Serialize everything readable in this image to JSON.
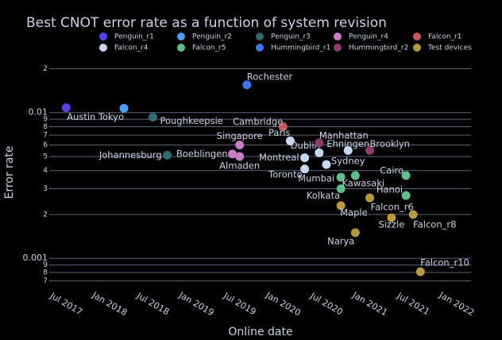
{
  "chart_data": {
    "type": "scatter",
    "title": "Best CNOT error rate as a function of system revision",
    "x_label": "Online date",
    "y_label": "Error rate",
    "log_y": true,
    "grid": true,
    "xlim": [
      "2017-05",
      "2022-03"
    ],
    "xticks": [
      {
        "value": "2017-07",
        "label": "Jul 2017"
      },
      {
        "value": "2018-01",
        "label": "Jan 2018"
      },
      {
        "value": "2018-07",
        "label": "Jul 2018"
      },
      {
        "value": "2019-01",
        "label": "Jan 2019"
      },
      {
        "value": "2019-07",
        "label": "Jul 2019"
      },
      {
        "value": "2020-01",
        "label": "Jan 2020"
      },
      {
        "value": "2020-07",
        "label": "Jul 2020"
      },
      {
        "value": "2021-01",
        "label": "Jan 2021"
      },
      {
        "value": "2021-07",
        "label": "Jul 2021"
      },
      {
        "value": "2022-01",
        "label": "Jan 2022"
      }
    ],
    "ylim": [
      0.00063,
      0.024
    ],
    "yticks": [
      {
        "value": 0.02,
        "label": "2"
      },
      0.01,
      {
        "value": 0.009,
        "label": "9"
      },
      {
        "value": 0.008,
        "label": "8"
      },
      {
        "value": 0.007,
        "label": "7"
      },
      {
        "value": 0.006,
        "label": "6"
      },
      {
        "value": 0.005,
        "label": "5"
      },
      {
        "value": 0.004,
        "label": "4"
      },
      {
        "value": 0.003,
        "label": "3"
      },
      {
        "value": 0.002,
        "label": "2"
      },
      0.001,
      {
        "value": 0.0009,
        "label": "9"
      },
      {
        "value": 0.0008,
        "label": "8"
      },
      {
        "value": 0.0007,
        "label": "7"
      }
    ],
    "series": [
      {
        "name": "Penguin_r1",
        "color": "#5b3ef0",
        "x": [
          "2017-07"
        ],
        "values": [
          0.0108
        ],
        "text": [
          "Austin"
        ]
      },
      {
        "name": "Penguin_r2",
        "color": "#4a9ff5",
        "x": [
          "2018-03"
        ],
        "values": [
          0.0107
        ],
        "text": [
          "Tokyo"
        ]
      },
      {
        "name": "Penguin_r3",
        "color": "#2f6a72",
        "x": [
          "2018-07",
          "2018-09"
        ],
        "values": [
          0.0093,
          0.0051
        ],
        "text": [
          "Poughkeepsie",
          "Johannesburg"
        ]
      },
      {
        "name": "Penguin_r4",
        "color": "#c77dc7",
        "x": [
          "2019-07",
          "2019-06",
          "2019-07"
        ],
        "values": [
          0.006,
          0.0052,
          0.005
        ],
        "text": [
          "Singapore",
          "Boeblingen",
          "Almaden"
        ]
      },
      {
        "name": "Falcon_r1",
        "color": "#c9575f",
        "x": [
          "2020-01"
        ],
        "values": [
          0.008
        ],
        "text": [
          "Cambridge"
        ]
      },
      {
        "name": "Falcon_r4",
        "color": "#c8d8f0",
        "x": [
          "2020-02",
          "2020-04",
          "2020-04",
          "2020-06",
          "2020-07",
          "2020-10"
        ],
        "values": [
          0.0064,
          0.0049,
          0.0041,
          0.0053,
          0.0044,
          0.0055
        ],
        "text": [
          "Paris",
          "Montreal",
          "Toronto",
          "Dublin",
          "Sydney",
          "Ehningen"
        ]
      },
      {
        "name": "Falcon_r5",
        "color": "#5fbf8a",
        "x": [
          "2020-09",
          "2020-09",
          "2020-11",
          "2021-06",
          "2021-06"
        ],
        "values": [
          0.0036,
          0.003,
          0.0037,
          0.0037,
          0.0027
        ],
        "text": [
          "Mumbai",
          "Kolkata",
          "Kawasaki",
          "Cairo",
          "Hanoi"
        ]
      },
      {
        "name": "Hummingbird_r1",
        "color": "#3d78e8",
        "x": [
          "2019-08"
        ],
        "values": [
          0.0155
        ],
        "text": [
          "Rochester"
        ]
      },
      {
        "name": "Hummingbird_r2",
        "color": "#8e3b6e",
        "x": [
          "2020-06",
          "2021-01"
        ],
        "values": [
          0.0062,
          0.0055
        ],
        "text": [
          "Manhattan",
          "Brooklyn"
        ]
      },
      {
        "name": "Test devices",
        "color": "#b89a3a",
        "x": [
          "2020-09",
          "2021-01",
          "2021-04",
          "2021-07",
          "2020-11",
          "2021-08"
        ],
        "values": [
          0.0023,
          0.0026,
          0.0019,
          0.002,
          0.0015,
          0.00081
        ],
        "text": [
          "Maple",
          "Falcon_r6",
          "Sizzle",
          "Falcon_r8",
          "Narya",
          "Falcon_r10"
        ]
      }
    ]
  }
}
